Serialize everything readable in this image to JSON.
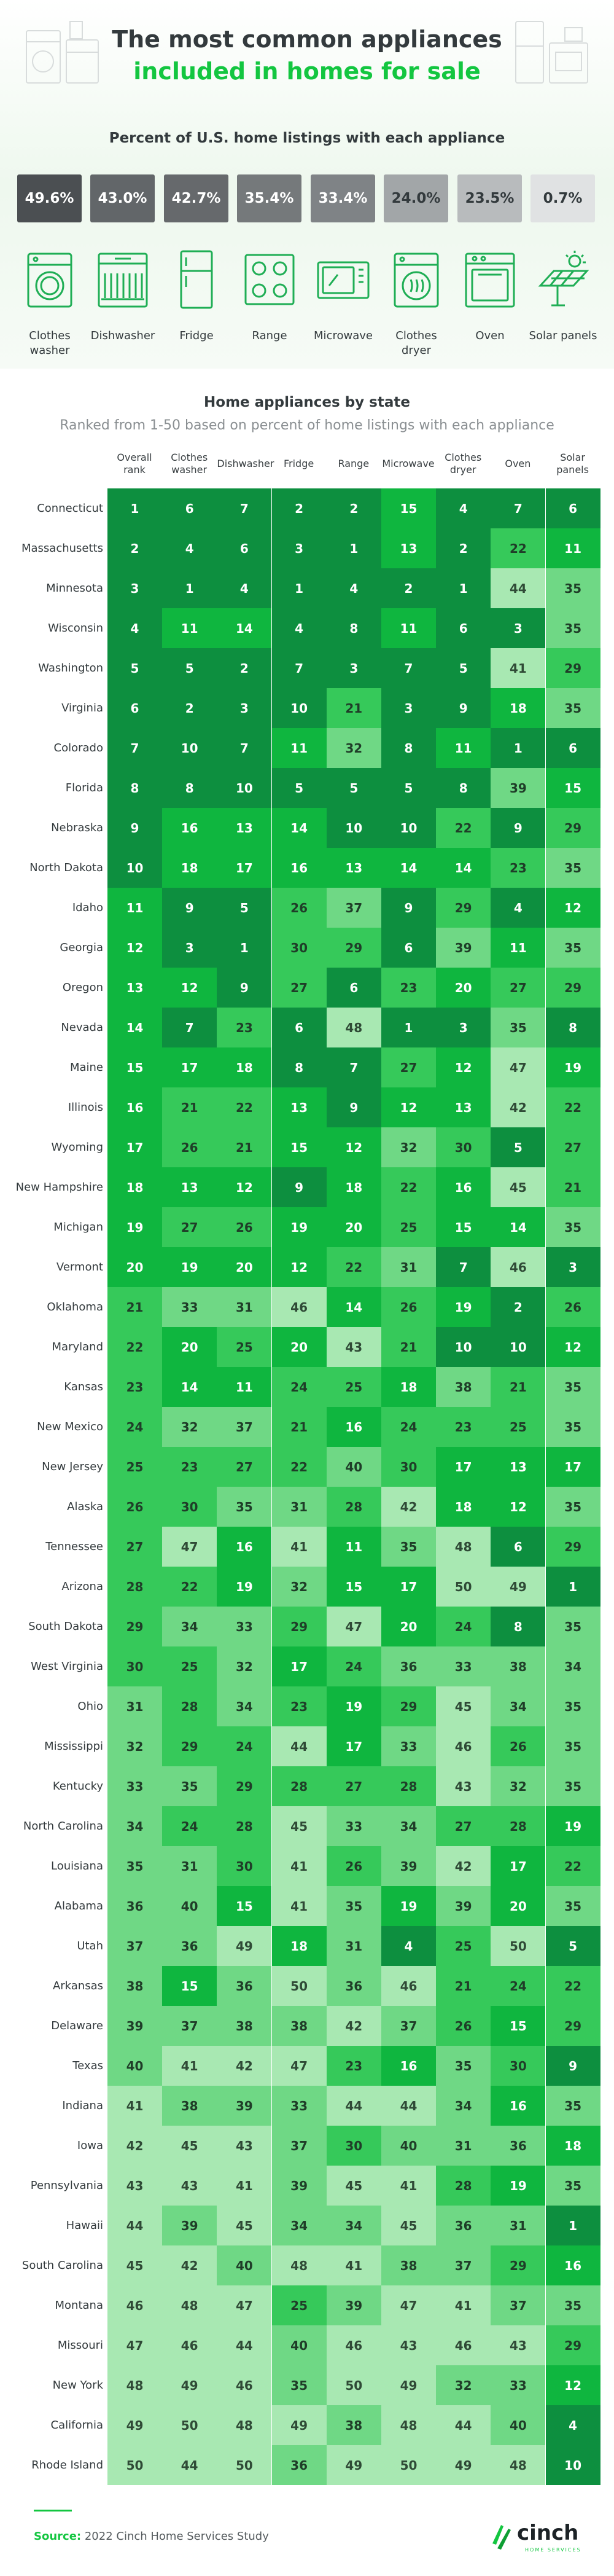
{
  "title_line1": "The most common appliances",
  "title_line2": "included in homes for sale",
  "subtitle": "Percent of U.S. home listings with each appliance",
  "appliances": [
    {
      "name": "Clothes washer",
      "percent": "49.6%",
      "icon": "washer-icon",
      "bg": "#4b4f52",
      "fg": "#ffffff"
    },
    {
      "name": "Dishwasher",
      "percent": "43.0%",
      "icon": "dishwasher-icon",
      "bg": "#626669",
      "fg": "#ffffff"
    },
    {
      "name": "Fridge",
      "percent": "42.7%",
      "icon": "fridge-icon",
      "bg": "#66696c",
      "fg": "#ffffff"
    },
    {
      "name": "Range",
      "percent": "35.4%",
      "icon": "range-icon",
      "bg": "#75797b",
      "fg": "#ffffff"
    },
    {
      "name": "Microwave",
      "percent": "33.4%",
      "icon": "microwave-icon",
      "bg": "#7f8386",
      "fg": "#ffffff"
    },
    {
      "name": "Clothes dryer",
      "percent": "24.0%",
      "icon": "dryer-icon",
      "bg": "#a2a6a8",
      "fg": "#333a3d"
    },
    {
      "name": "Oven",
      "percent": "23.5%",
      "icon": "oven-icon",
      "bg": "#b8bbbd",
      "fg": "#333a3d"
    },
    {
      "name": "Solar panels",
      "percent": "0.7%",
      "icon": "solar-panel-icon",
      "bg": "#e0e2e3",
      "fg": "#333a3d"
    }
  ],
  "colors": {
    "accent": "#13c640",
    "dark_text": "#333a3d"
  },
  "chart_data": {
    "type": "table",
    "title": "Home appliances by state",
    "subtitle": "Ranked from 1-50 based on percent of home listings with each appliance",
    "columns": [
      "Overall rank",
      "Clothes washer",
      "Dishwasher",
      "Fridge",
      "Range",
      "Microwave",
      "Clothes dryer",
      "Oven",
      "Solar panels"
    ],
    "states": [
      "Connecticut",
      "Massachusetts",
      "Minnesota",
      "Wisconsin",
      "Washington",
      "Virginia",
      "Colorado",
      "Florida",
      "Nebraska",
      "North Dakota",
      "Idaho",
      "Georgia",
      "Oregon",
      "Nevada",
      "Maine",
      "Illinois",
      "Wyoming",
      "New Hampshire",
      "Michigan",
      "Vermont",
      "Oklahoma",
      "Maryland",
      "Kansas",
      "New Mexico",
      "New Jersey",
      "Alaska",
      "Tennessee",
      "Arizona",
      "South Dakota",
      "West Virginia",
      "Ohio",
      "Mississippi",
      "Kentucky",
      "North Carolina",
      "Louisiana",
      "Alabama",
      "Utah",
      "Arkansas",
      "Delaware",
      "Texas",
      "Indiana",
      "Iowa",
      "Pennsylvania",
      "Hawaii",
      "South Carolina",
      "Montana",
      "Missouri",
      "New York",
      "California",
      "Rhode Island"
    ],
    "rows": [
      [
        1,
        6,
        7,
        2,
        2,
        15,
        4,
        7,
        6
      ],
      [
        2,
        4,
        6,
        3,
        1,
        13,
        2,
        22,
        11
      ],
      [
        3,
        1,
        4,
        1,
        4,
        2,
        1,
        44,
        35
      ],
      [
        4,
        11,
        14,
        4,
        8,
        11,
        6,
        3,
        35
      ],
      [
        5,
        5,
        2,
        7,
        3,
        7,
        5,
        41,
        29
      ],
      [
        6,
        2,
        3,
        10,
        21,
        3,
        9,
        18,
        35
      ],
      [
        7,
        10,
        7,
        11,
        32,
        8,
        11,
        1,
        6
      ],
      [
        8,
        8,
        10,
        5,
        5,
        5,
        8,
        39,
        15
      ],
      [
        9,
        16,
        13,
        14,
        10,
        10,
        22,
        9,
        29
      ],
      [
        10,
        18,
        17,
        16,
        13,
        14,
        14,
        23,
        35
      ],
      [
        11,
        9,
        5,
        26,
        37,
        9,
        29,
        4,
        12
      ],
      [
        12,
        3,
        1,
        30,
        29,
        6,
        39,
        11,
        35
      ],
      [
        13,
        12,
        9,
        27,
        6,
        23,
        20,
        27,
        29
      ],
      [
        14,
        7,
        23,
        6,
        48,
        1,
        3,
        35,
        8
      ],
      [
        15,
        17,
        18,
        8,
        7,
        27,
        12,
        47,
        19
      ],
      [
        16,
        21,
        22,
        13,
        9,
        12,
        13,
        42,
        22
      ],
      [
        17,
        26,
        21,
        15,
        12,
        32,
        30,
        5,
        27
      ],
      [
        18,
        13,
        12,
        9,
        18,
        22,
        16,
        45,
        21
      ],
      [
        19,
        27,
        26,
        19,
        20,
        25,
        15,
        14,
        35
      ],
      [
        20,
        19,
        20,
        12,
        22,
        31,
        7,
        46,
        3
      ],
      [
        21,
        33,
        31,
        46,
        14,
        26,
        19,
        2,
        26
      ],
      [
        22,
        20,
        25,
        20,
        43,
        21,
        10,
        10,
        12
      ],
      [
        23,
        14,
        11,
        24,
        25,
        18,
        38,
        21,
        35
      ],
      [
        24,
        32,
        37,
        21,
        16,
        24,
        23,
        25,
        35
      ],
      [
        25,
        23,
        27,
        22,
        40,
        30,
        17,
        13,
        17
      ],
      [
        26,
        30,
        35,
        31,
        28,
        42,
        18,
        12,
        35
      ],
      [
        27,
        47,
        16,
        41,
        11,
        35,
        48,
        6,
        29
      ],
      [
        28,
        22,
        19,
        32,
        15,
        17,
        50,
        49,
        1
      ],
      [
        29,
        34,
        33,
        29,
        47,
        20,
        24,
        8,
        35
      ],
      [
        30,
        25,
        32,
        17,
        24,
        36,
        33,
        38,
        34
      ],
      [
        31,
        28,
        34,
        23,
        19,
        29,
        45,
        34,
        35
      ],
      [
        32,
        29,
        24,
        44,
        17,
        33,
        46,
        26,
        35
      ],
      [
        33,
        35,
        29,
        28,
        27,
        28,
        43,
        32,
        35
      ],
      [
        34,
        24,
        28,
        45,
        33,
        34,
        27,
        28,
        19
      ],
      [
        35,
        31,
        30,
        41,
        26,
        39,
        42,
        17,
        22
      ],
      [
        36,
        40,
        15,
        41,
        35,
        19,
        39,
        20,
        35
      ],
      [
        37,
        36,
        49,
        18,
        31,
        4,
        25,
        50,
        5
      ],
      [
        38,
        15,
        36,
        50,
        36,
        46,
        21,
        24,
        22
      ],
      [
        39,
        37,
        38,
        38,
        42,
        37,
        26,
        15,
        29
      ],
      [
        40,
        41,
        42,
        47,
        23,
        16,
        35,
        30,
        9
      ],
      [
        41,
        38,
        39,
        33,
        44,
        44,
        34,
        16,
        35
      ],
      [
        42,
        45,
        43,
        37,
        30,
        40,
        31,
        36,
        18
      ],
      [
        43,
        43,
        41,
        39,
        45,
        41,
        28,
        19,
        35
      ],
      [
        44,
        39,
        45,
        34,
        34,
        45,
        36,
        31,
        1
      ],
      [
        45,
        42,
        40,
        48,
        41,
        38,
        37,
        29,
        16
      ],
      [
        46,
        48,
        47,
        25,
        39,
        47,
        41,
        37,
        35
      ],
      [
        47,
        46,
        44,
        40,
        46,
        43,
        46,
        43,
        29
      ],
      [
        48,
        49,
        46,
        35,
        50,
        49,
        32,
        33,
        12
      ],
      [
        49,
        50,
        48,
        49,
        38,
        48,
        44,
        40,
        4
      ],
      [
        50,
        44,
        50,
        36,
        49,
        50,
        49,
        48,
        10
      ]
    ]
  },
  "footer": {
    "source_label": "Source:",
    "source_text": "2022 Cinch Home Services Study",
    "logo_text": "cinch",
    "logo_sub": "HOME SERVICES"
  }
}
